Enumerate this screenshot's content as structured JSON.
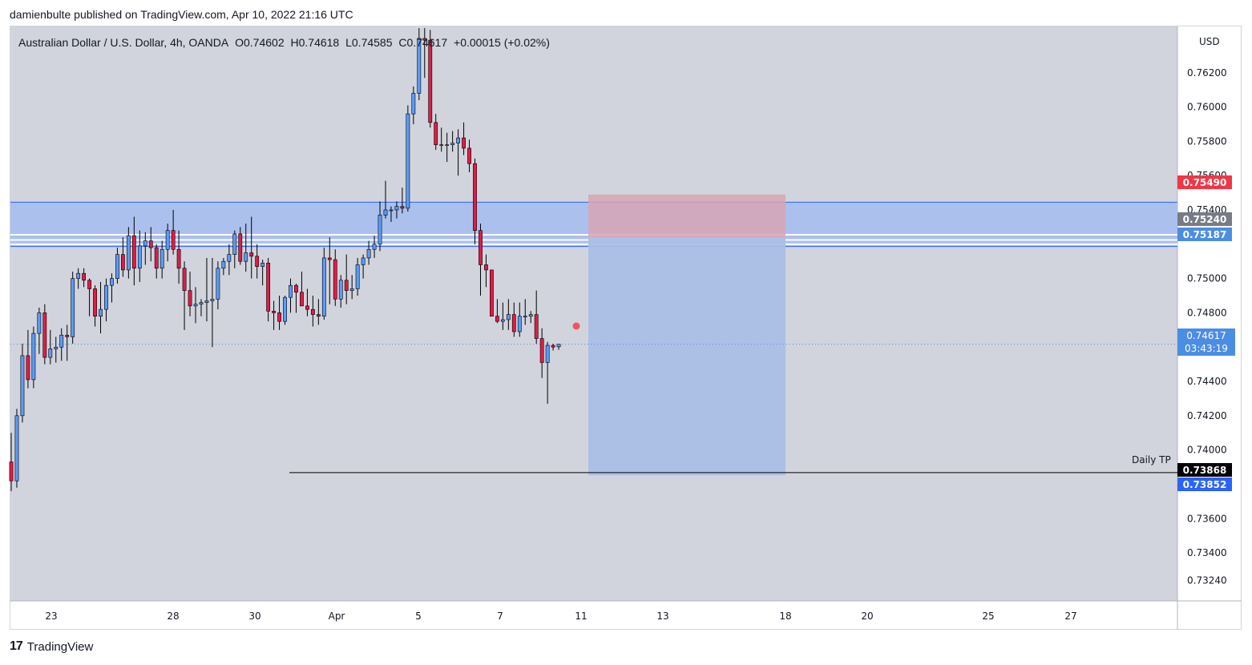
{
  "header": {
    "published": "damienbulte published on TradingView.com, Apr 10, 2022 21:16 UTC"
  },
  "legend": {
    "symbol": "Australian Dollar / U.S. Dollar, 4h, OANDA",
    "open": "O0.74602",
    "high": "H0.74618",
    "low": "L0.74585",
    "close": "C0.74617",
    "change": "+0.00015 (+0.02%)"
  },
  "footer": {
    "brand": "TradingView",
    "logo_text": "17"
  },
  "price_tags": {
    "stop": "0.75490",
    "gray": "0.75240",
    "blue_line": "0.75187",
    "current": "0.74617",
    "countdown": "03:43:19",
    "daily_tp": "0.73868",
    "target": "0.73852"
  },
  "annotations": {
    "daily_tp_label": "Daily TP"
  },
  "colors": {
    "background": "#d1d4dc",
    "up": "#5b9cf6",
    "down": "#e31b47",
    "zone": "#a9bfed",
    "stop_zone": "#d7a5b4",
    "target_zone": "#aabfe6"
  },
  "chart_data": {
    "type": "candlestick",
    "title": "Australian Dollar / U.S. Dollar, 4h, OANDA",
    "currency": "USD",
    "y_ticks": [
      "0.76200",
      "0.76000",
      "0.75800",
      "0.75600",
      "0.75400",
      "0.75000",
      "0.74800",
      "0.74400",
      "0.74200",
      "0.74000",
      "0.73600",
      "0.73400",
      "0.73240"
    ],
    "x_ticks": [
      "23",
      "28",
      "30",
      "Apr",
      "5",
      "7",
      "11",
      "13",
      "18",
      "20",
      "25",
      "27"
    ],
    "ylim": [
      0.7312,
      0.7647
    ],
    "resistance_zone": [
      0.75187,
      0.75445
    ],
    "position": {
      "type": "short",
      "entry": 0.7524,
      "stop": 0.7549,
      "target": 0.73852
    },
    "daily_tp": 0.73868,
    "current_price": 0.74617,
    "candles": [
      [
        0.7393,
        0.741,
        0.7376,
        0.7382
      ],
      [
        0.7382,
        0.7424,
        0.7378,
        0.742
      ],
      [
        0.742,
        0.7462,
        0.7416,
        0.7455
      ],
      [
        0.7455,
        0.747,
        0.7436,
        0.7441
      ],
      [
        0.7441,
        0.7472,
        0.7436,
        0.7468
      ],
      [
        0.7468,
        0.7483,
        0.7456,
        0.748
      ],
      [
        0.748,
        0.7485,
        0.745,
        0.7454
      ],
      [
        0.7454,
        0.747,
        0.745,
        0.7459
      ],
      [
        0.7459,
        0.7466,
        0.7451,
        0.746
      ],
      [
        0.746,
        0.7471,
        0.7452,
        0.7467
      ],
      [
        0.7467,
        0.7473,
        0.7452,
        0.7466
      ],
      [
        0.7466,
        0.7504,
        0.7462,
        0.75
      ],
      [
        0.75,
        0.7506,
        0.7494,
        0.7503
      ],
      [
        0.7503,
        0.7506,
        0.7495,
        0.7499
      ],
      [
        0.7499,
        0.75,
        0.7478,
        0.7494
      ],
      [
        0.7494,
        0.7496,
        0.7472,
        0.7478
      ],
      [
        0.7478,
        0.7498,
        0.7468,
        0.7482
      ],
      [
        0.7482,
        0.75,
        0.7475,
        0.7496
      ],
      [
        0.7496,
        0.7503,
        0.7486,
        0.75
      ],
      [
        0.75,
        0.7518,
        0.7497,
        0.7514
      ],
      [
        0.7514,
        0.7524,
        0.7501,
        0.7505
      ],
      [
        0.7505,
        0.753,
        0.75,
        0.7525
      ],
      [
        0.7525,
        0.7536,
        0.7496,
        0.7506
      ],
      [
        0.7506,
        0.7528,
        0.7498,
        0.7519
      ],
      [
        0.7519,
        0.7527,
        0.7508,
        0.7522
      ],
      [
        0.7522,
        0.753,
        0.751,
        0.7518
      ],
      [
        0.7518,
        0.752,
        0.75,
        0.7506
      ],
      [
        0.7506,
        0.7522,
        0.75,
        0.7517
      ],
      [
        0.7517,
        0.7532,
        0.751,
        0.7528
      ],
      [
        0.7528,
        0.754,
        0.7514,
        0.7517
      ],
      [
        0.7517,
        0.7528,
        0.7497,
        0.7506
      ],
      [
        0.7506,
        0.751,
        0.747,
        0.7493
      ],
      [
        0.7493,
        0.7504,
        0.7478,
        0.7484
      ],
      [
        0.7484,
        0.7495,
        0.7474,
        0.7485
      ],
      [
        0.7485,
        0.7488,
        0.7478,
        0.7486
      ],
      [
        0.7486,
        0.7512,
        0.7475,
        0.7487
      ],
      [
        0.7487,
        0.7512,
        0.746,
        0.7488
      ],
      [
        0.7488,
        0.751,
        0.7482,
        0.7506
      ],
      [
        0.7506,
        0.7512,
        0.7502,
        0.751
      ],
      [
        0.751,
        0.752,
        0.7502,
        0.7514
      ],
      [
        0.7514,
        0.7528,
        0.7506,
        0.7526
      ],
      [
        0.7526,
        0.753,
        0.7508,
        0.751
      ],
      [
        0.751,
        0.7532,
        0.7504,
        0.7515
      ],
      [
        0.7515,
        0.7536,
        0.75,
        0.7513
      ],
      [
        0.7513,
        0.752,
        0.75,
        0.7507
      ],
      [
        0.7507,
        0.7511,
        0.7496,
        0.7509
      ],
      [
        0.7509,
        0.7512,
        0.7475,
        0.7481
      ],
      [
        0.7481,
        0.7487,
        0.747,
        0.748
      ],
      [
        0.748,
        0.749,
        0.747,
        0.7475
      ],
      [
        0.7475,
        0.749,
        0.7473,
        0.7489
      ],
      [
        0.7489,
        0.75,
        0.748,
        0.7496
      ],
      [
        0.7496,
        0.7497,
        0.748,
        0.7492
      ],
      [
        0.7492,
        0.7504,
        0.7484,
        0.7484
      ],
      [
        0.7484,
        0.7494,
        0.7478,
        0.7482
      ],
      [
        0.7482,
        0.749,
        0.7472,
        0.7479
      ],
      [
        0.7479,
        0.7488,
        0.7473,
        0.7478
      ],
      [
        0.7478,
        0.7518,
        0.7476,
        0.7512
      ],
      [
        0.7512,
        0.7524,
        0.7485,
        0.7511
      ],
      [
        0.7511,
        0.7517,
        0.7484,
        0.7488
      ],
      [
        0.7488,
        0.7502,
        0.7483,
        0.7499
      ],
      [
        0.7499,
        0.7514,
        0.7485,
        0.7493
      ],
      [
        0.7493,
        0.7502,
        0.7488,
        0.7494
      ],
      [
        0.7494,
        0.7512,
        0.749,
        0.7508
      ],
      [
        0.7508,
        0.7514,
        0.75,
        0.7512
      ],
      [
        0.7512,
        0.7522,
        0.7508,
        0.7517
      ],
      [
        0.7517,
        0.7525,
        0.7512,
        0.752
      ],
      [
        0.752,
        0.7545,
        0.7516,
        0.7537
      ],
      [
        0.7537,
        0.7557,
        0.7535,
        0.754
      ],
      [
        0.754,
        0.7542,
        0.7533,
        0.754
      ],
      [
        0.754,
        0.7545,
        0.7535,
        0.7542
      ],
      [
        0.7542,
        0.7553,
        0.7538,
        0.7541
      ],
      [
        0.7541,
        0.7601,
        0.7539,
        0.7596
      ],
      [
        0.7596,
        0.7612,
        0.759,
        0.7608
      ],
      [
        0.7608,
        0.7646,
        0.7604,
        0.764
      ],
      [
        0.764,
        0.7646,
        0.7617,
        0.7639
      ],
      [
        0.7639,
        0.7645,
        0.7588,
        0.7591
      ],
      [
        0.7591,
        0.7596,
        0.7575,
        0.7578
      ],
      [
        0.7578,
        0.7588,
        0.7574,
        0.7578
      ],
      [
        0.7578,
        0.7585,
        0.7568,
        0.7578
      ],
      [
        0.7578,
        0.7586,
        0.7574,
        0.7579
      ],
      [
        0.7579,
        0.7587,
        0.756,
        0.7582
      ],
      [
        0.7582,
        0.7591,
        0.7572,
        0.7576
      ],
      [
        0.7576,
        0.7581,
        0.7562,
        0.7567
      ],
      [
        0.7567,
        0.757,
        0.752,
        0.7528
      ],
      [
        0.7528,
        0.7532,
        0.749,
        0.7508
      ],
      [
        0.7508,
        0.7514,
        0.7495,
        0.7505
      ],
      [
        0.7505,
        0.7505,
        0.7478,
        0.7478
      ],
      [
        0.7478,
        0.7488,
        0.7474,
        0.7475
      ],
      [
        0.7475,
        0.7486,
        0.747,
        0.7476
      ],
      [
        0.7476,
        0.7488,
        0.747,
        0.7479
      ],
      [
        0.7479,
        0.7486,
        0.7466,
        0.7469
      ],
      [
        0.7469,
        0.7486,
        0.7466,
        0.7478
      ],
      [
        0.7478,
        0.7488,
        0.7473,
        0.7478
      ],
      [
        0.7478,
        0.7481,
        0.7474,
        0.7479
      ],
      [
        0.7479,
        0.7493,
        0.7462,
        0.7465
      ],
      [
        0.7465,
        0.7471,
        0.7442,
        0.7451
      ],
      [
        0.7451,
        0.7463,
        0.7427,
        0.7461
      ],
      [
        0.7461,
        0.7462,
        0.7458,
        0.746
      ],
      [
        0.74602,
        0.74618,
        0.74585,
        0.74617
      ]
    ]
  }
}
